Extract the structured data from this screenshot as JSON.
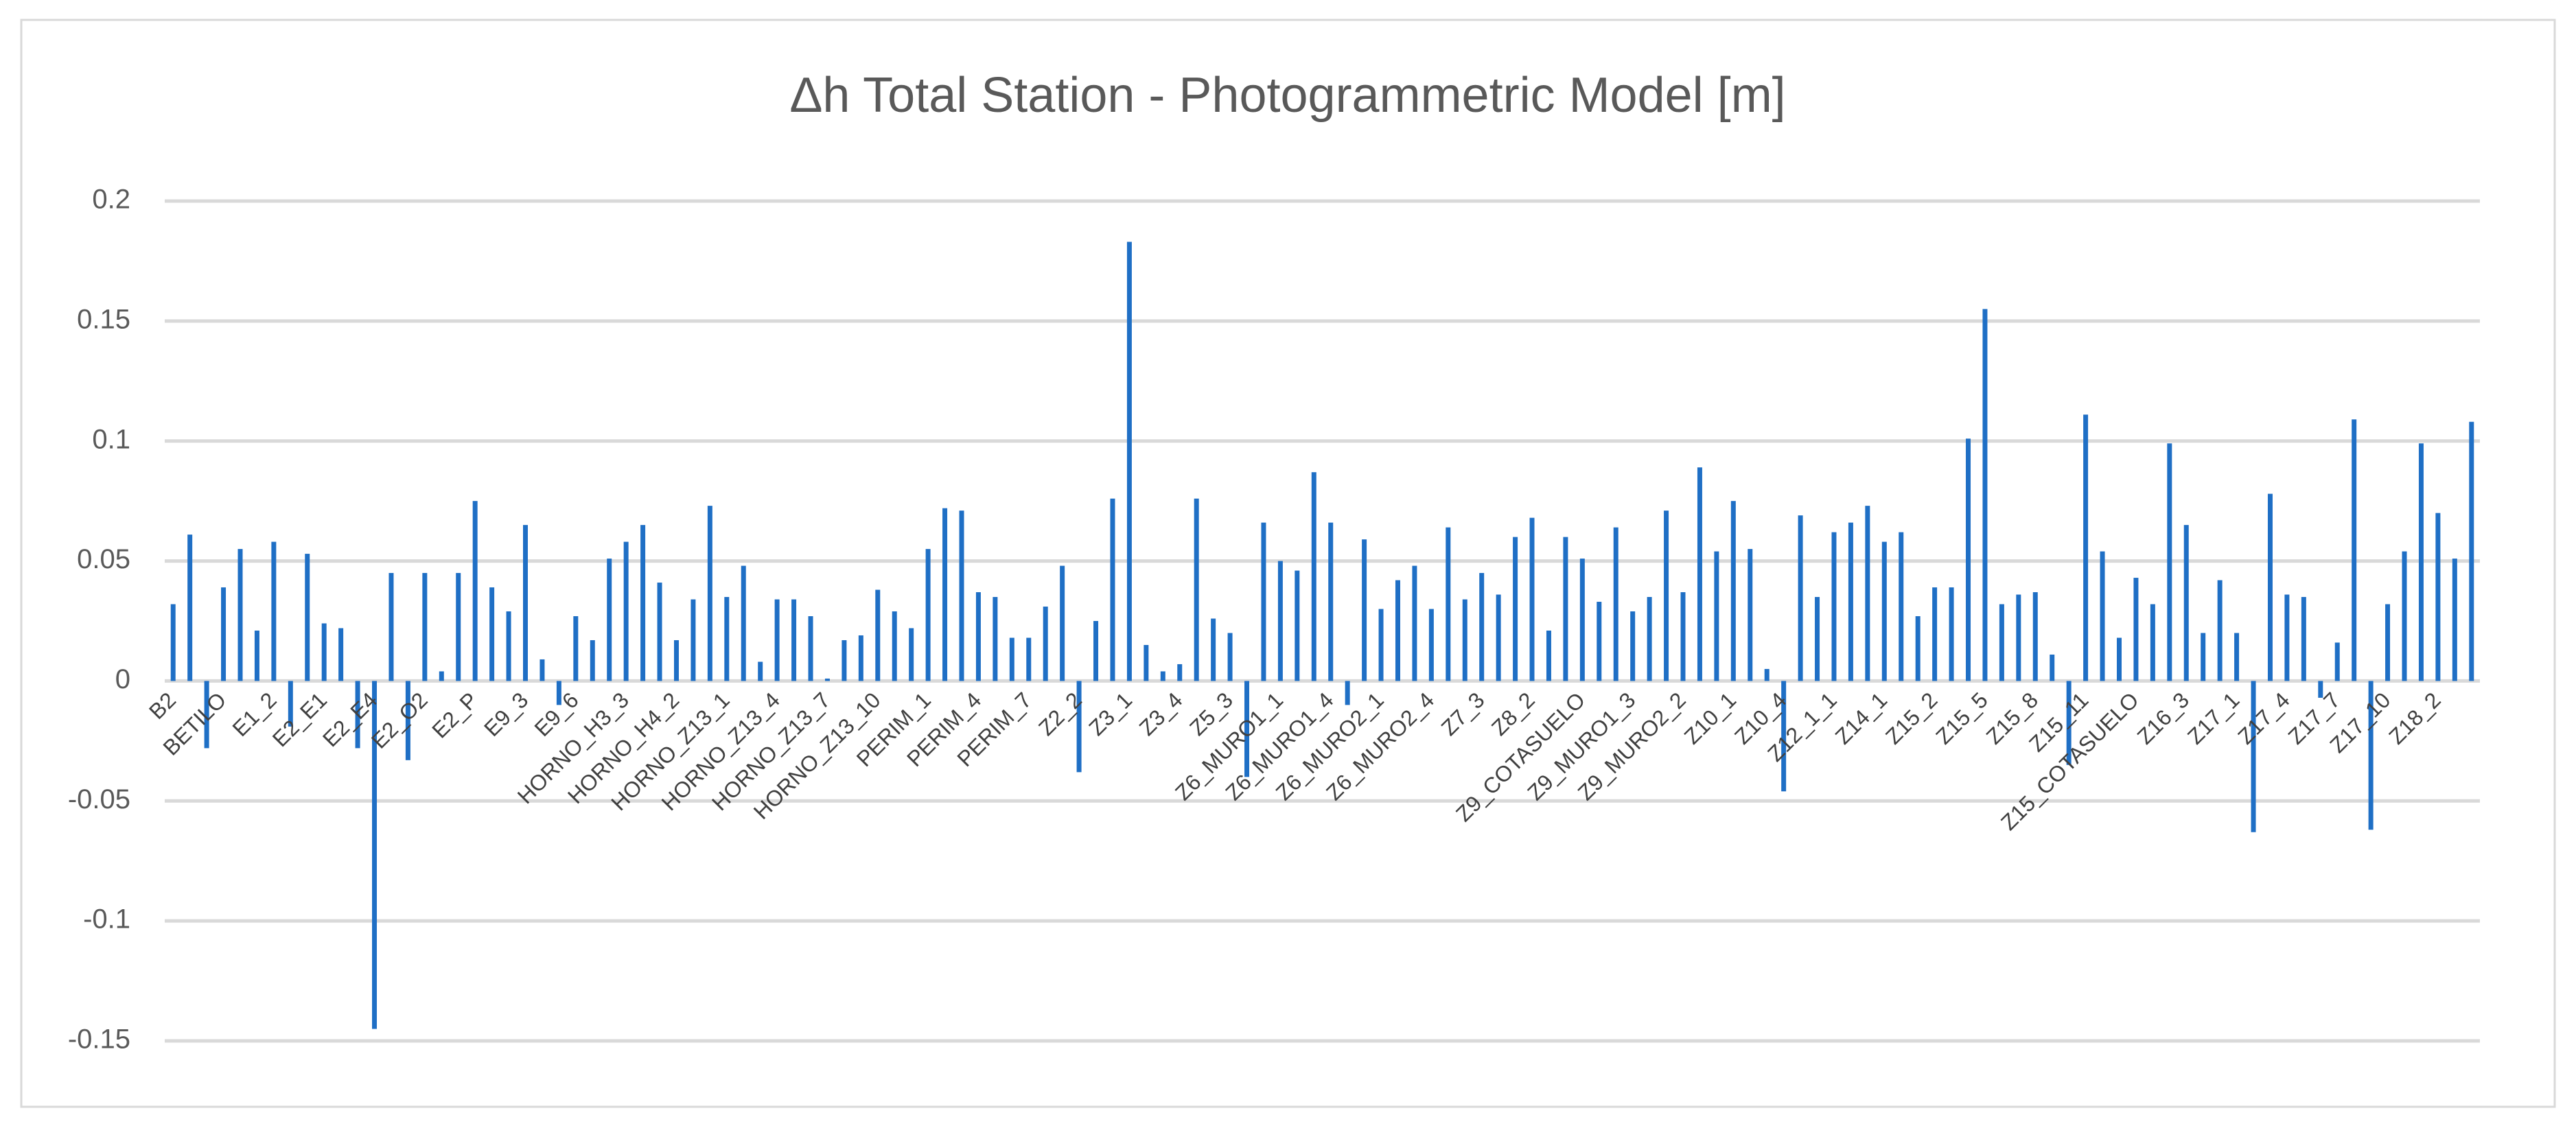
{
  "chart_data": {
    "type": "bar",
    "title": "Δh Total Station - Photogrammetric Model [m]",
    "categories": [
      "B2",
      null,
      null,
      "BETILO",
      null,
      null,
      "E1_2",
      null,
      null,
      "E2_E1",
      null,
      null,
      "E2_E4",
      null,
      null,
      "E2_O2",
      null,
      null,
      "E2_P",
      null,
      null,
      "E9_3",
      null,
      null,
      "E9_6",
      null,
      null,
      "HORNO_H3_3",
      null,
      null,
      "HORNO_H4_2",
      null,
      null,
      "HORNO_Z13_1",
      null,
      null,
      "HORNO_Z13_4",
      null,
      null,
      "HORNO_Z13_7",
      null,
      null,
      "HORNO_Z13_10",
      null,
      null,
      "PERIM_1",
      null,
      null,
      "PERIM_4",
      null,
      null,
      "PERIM_7",
      null,
      null,
      "Z2_2",
      null,
      null,
      "Z3_1",
      null,
      null,
      "Z3_4",
      null,
      null,
      "Z5_3",
      null,
      null,
      "Z6_MURO1_1",
      null,
      null,
      "Z6_MURO1_4",
      null,
      null,
      "Z6_MURO2_1",
      null,
      null,
      "Z6_MURO2_4",
      null,
      null,
      "Z7_3",
      null,
      null,
      "Z8_2",
      null,
      null,
      "Z9_COTASUELO",
      null,
      null,
      "Z9_MURO1_3",
      null,
      null,
      "Z9_MURO2_2",
      null,
      null,
      "Z10_1",
      null,
      null,
      "Z10_4",
      null,
      null,
      "Z12_1_1",
      null,
      null,
      "Z14_1",
      null,
      null,
      "Z15_2",
      null,
      null,
      "Z15_5",
      null,
      null,
      "Z15_8",
      null,
      null,
      "Z15_11",
      null,
      null,
      "Z15_COTASUELO",
      null,
      null,
      "Z16_3",
      null,
      null,
      "Z17_1",
      null,
      null,
      "Z17_4",
      null,
      null,
      "Z17_7",
      null,
      null,
      "Z17_10",
      null,
      null,
      "Z18_2",
      null,
      null
    ],
    "values": [
      0.032,
      0.061,
      -0.028,
      0.039,
      0.055,
      0.021,
      0.058,
      -0.019,
      0.053,
      0.024,
      0.022,
      -0.028,
      -0.145,
      0.045,
      -0.033,
      0.045,
      0.004,
      0.045,
      0.075,
      0.039,
      0.029,
      0.065,
      0.009,
      -0.01,
      0.027,
      0.017,
      0.051,
      0.058,
      0.065,
      0.041,
      0.017,
      0.034,
      0.073,
      0.035,
      0.048,
      0.008,
      0.034,
      0.034,
      0.027,
      0.001,
      0.017,
      0.019,
      0.038,
      0.029,
      0.022,
      0.055,
      0.072,
      0.071,
      0.037,
      0.035,
      0.018,
      0.018,
      0.031,
      0.048,
      -0.038,
      0.025,
      0.076,
      0.183,
      0.015,
      0.004,
      0.007,
      0.076,
      0.026,
      0.02,
      -0.04,
      0.066,
      0.05,
      0.046,
      0.087,
      0.066,
      -0.01,
      0.059,
      0.03,
      0.042,
      0.048,
      0.03,
      0.064,
      0.034,
      0.045,
      0.036,
      0.06,
      0.068,
      0.021,
      0.06,
      0.051,
      0.033,
      0.064,
      0.029,
      0.035,
      0.071,
      0.037,
      0.089,
      0.054,
      0.075,
      0.055,
      0.005,
      -0.046,
      0.069,
      0.035,
      0.062,
      0.066,
      0.073,
      0.058,
      0.062,
      0.027,
      0.039,
      0.039,
      0.101,
      0.155,
      0.032,
      0.036,
      0.037,
      0.011,
      -0.035,
      0.111,
      0.054,
      0.018,
      0.043,
      0.032,
      0.099,
      0.065,
      0.02,
      0.042,
      0.02,
      -0.063,
      0.078,
      0.036,
      0.035,
      -0.007,
      0.016,
      0.109,
      -0.062,
      0.032,
      0.054,
      0.099,
      0.07,
      0.051,
      0.108
    ],
    "color": "#1f6fc5",
    "ylim": [
      -0.15,
      0.2
    ],
    "yticks": [
      -0.15,
      -0.1,
      -0.05,
      0,
      0.05,
      0.1,
      0.15,
      0.2
    ],
    "grid": true
  }
}
